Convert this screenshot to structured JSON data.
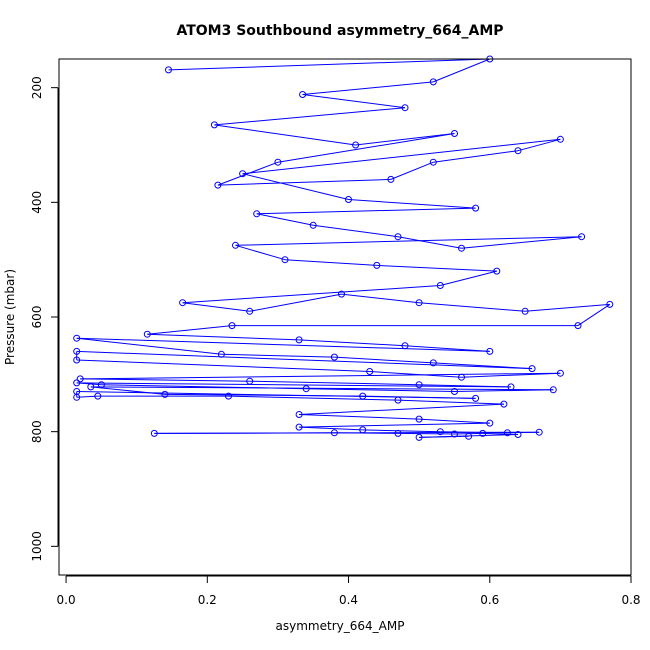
{
  "chart_data": {
    "type": "scatter",
    "title": "ATOM3 Southbound asymmetry_664_AMP",
    "xlabel": "asymmetry_664_AMP",
    "ylabel": "Pressure (mbar)",
    "xlim": [
      -0.01,
      0.8
    ],
    "ylim": [
      1050,
      150
    ],
    "y_reversed": true,
    "x_ticks": [
      "0.0",
      "0.2",
      "0.4",
      "0.6",
      "0.8"
    ],
    "y_ticks": [
      "200",
      "400",
      "600",
      "800",
      "1000"
    ],
    "grid": false,
    "series_color": "#0000ff",
    "series": [
      {
        "style": "points-and-lines",
        "points": [
          [
            0.145,
            169
          ],
          [
            0.6,
            150
          ],
          [
            0.52,
            190
          ],
          [
            0.335,
            212
          ],
          [
            0.48,
            235
          ],
          [
            0.21,
            265
          ],
          [
            0.41,
            300
          ],
          [
            0.55,
            280
          ],
          [
            0.3,
            330
          ],
          [
            0.215,
            370
          ],
          [
            0.46,
            360
          ],
          [
            0.52,
            330
          ],
          [
            0.64,
            310
          ],
          [
            0.7,
            290
          ],
          [
            0.25,
            350
          ],
          [
            0.4,
            395
          ],
          [
            0.58,
            410
          ],
          [
            0.27,
            420
          ],
          [
            0.35,
            440
          ],
          [
            0.47,
            460
          ],
          [
            0.56,
            480
          ],
          [
            0.73,
            460
          ],
          [
            0.24,
            475
          ],
          [
            0.31,
            500
          ],
          [
            0.44,
            510
          ],
          [
            0.61,
            520
          ],
          [
            0.53,
            545
          ],
          [
            0.165,
            575
          ],
          [
            0.26,
            590
          ],
          [
            0.39,
            560
          ],
          [
            0.5,
            575
          ],
          [
            0.65,
            590
          ],
          [
            0.77,
            578
          ],
          [
            0.725,
            615
          ],
          [
            0.235,
            615
          ],
          [
            0.115,
            630
          ],
          [
            0.33,
            640
          ],
          [
            0.48,
            650
          ],
          [
            0.6,
            660
          ],
          [
            0.015,
            637
          ],
          [
            0.22,
            665
          ],
          [
            0.38,
            670
          ],
          [
            0.52,
            680
          ],
          [
            0.66,
            690
          ],
          [
            0.015,
            660
          ],
          [
            0.015,
            675
          ],
          [
            0.43,
            695
          ],
          [
            0.56,
            705
          ],
          [
            0.7,
            698
          ],
          [
            0.02,
            708
          ],
          [
            0.26,
            712
          ],
          [
            0.5,
            718
          ],
          [
            0.63,
            722
          ],
          [
            0.015,
            715
          ],
          [
            0.05,
            718
          ],
          [
            0.34,
            725
          ],
          [
            0.55,
            730
          ],
          [
            0.69,
            727
          ],
          [
            0.035,
            722
          ],
          [
            0.14,
            735
          ],
          [
            0.42,
            738
          ],
          [
            0.58,
            742
          ],
          [
            0.015,
            730
          ],
          [
            0.015,
            740
          ],
          [
            0.045,
            738
          ],
          [
            0.23,
            738
          ],
          [
            0.47,
            745
          ],
          [
            0.62,
            752
          ],
          [
            0.33,
            770
          ],
          [
            0.5,
            778
          ],
          [
            0.6,
            785
          ],
          [
            0.33,
            792
          ],
          [
            0.42,
            797
          ],
          [
            0.53,
            800
          ],
          [
            0.625,
            802
          ],
          [
            0.67,
            801
          ],
          [
            0.125,
            803
          ],
          [
            0.38,
            802
          ],
          [
            0.47,
            803
          ],
          [
            0.55,
            804
          ],
          [
            0.59,
            803
          ],
          [
            0.64,
            805
          ],
          [
            0.5,
            810
          ],
          [
            0.57,
            808
          ]
        ]
      }
    ]
  }
}
